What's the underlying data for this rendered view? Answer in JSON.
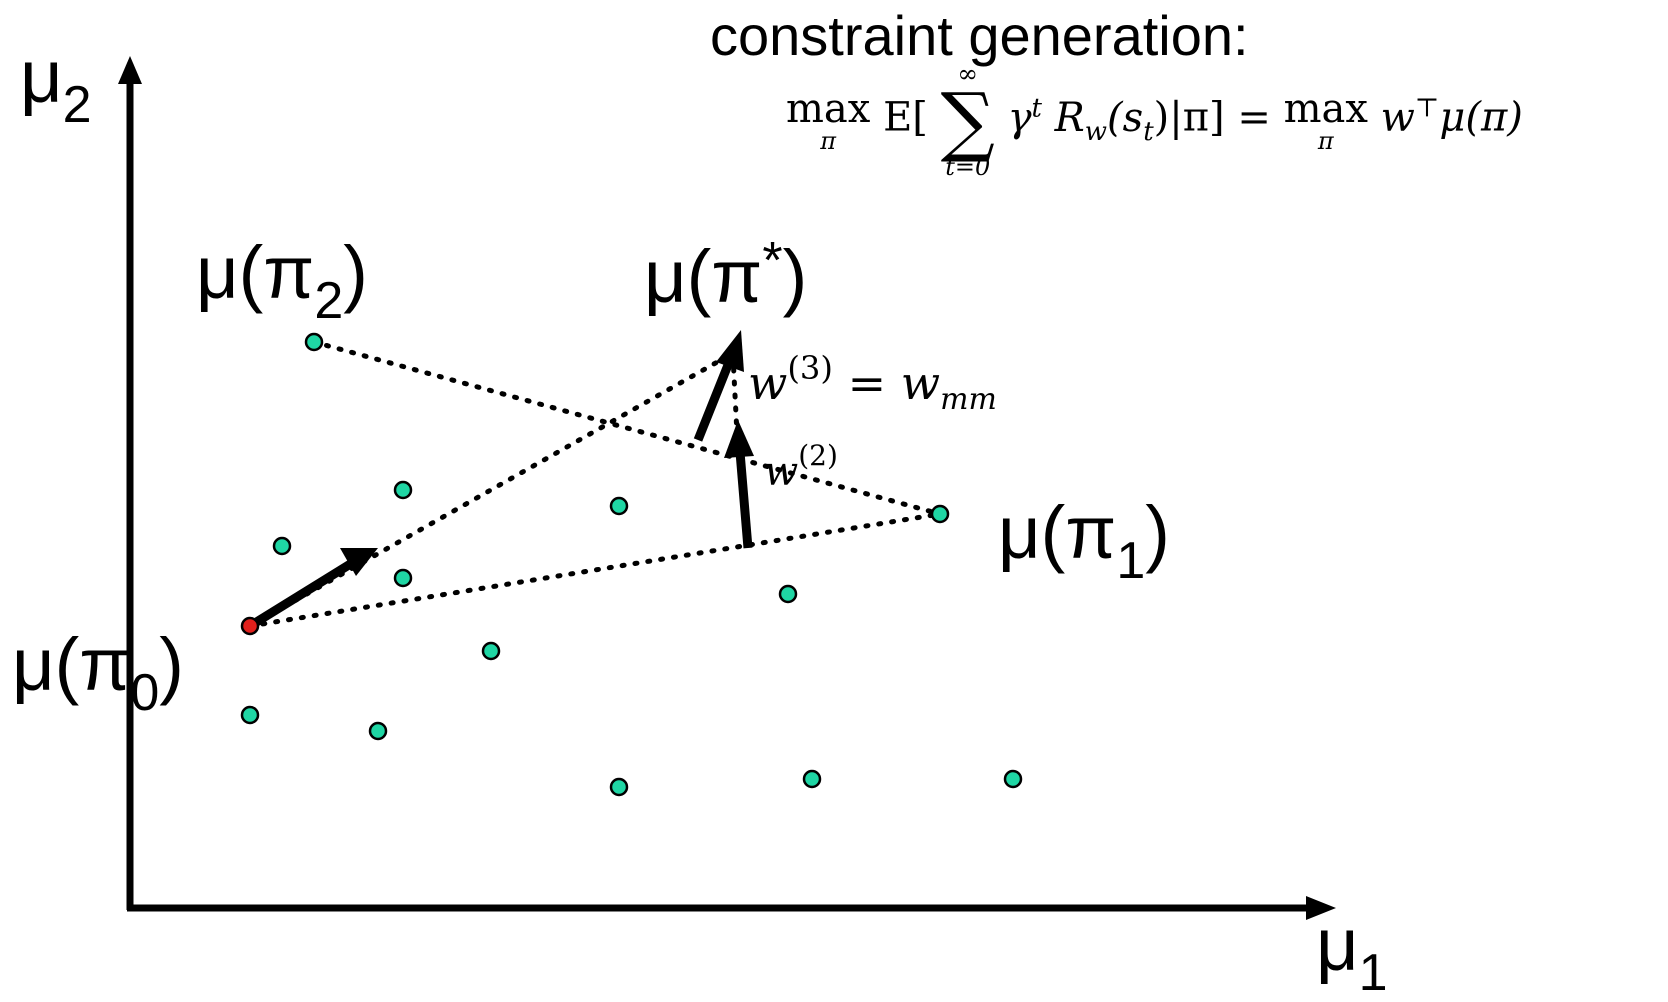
{
  "title": "constraint generation:",
  "formula": {
    "lhs_op": "max",
    "lhs_op_under": "π",
    "expect": "E[",
    "sum_over": "∞",
    "sum_symbol": "∑",
    "sum_under": "t=0",
    "body": "γ",
    "body_sup": "t",
    "reward": "R",
    "reward_sub": "w",
    "reward_arg": "(s",
    "reward_arg_sub": "t",
    "cond": ")|π] =",
    "rhs_op": "max",
    "rhs_op_under": "π",
    "rhs": "w",
    "rhs_sup": "⊤",
    "rhs_tail": "μ(π)"
  },
  "axes": {
    "x_label": "μ",
    "x_sub": "1",
    "y_label": "μ",
    "y_sub": "2"
  },
  "labels": {
    "pi0": {
      "main": "μ(π",
      "sub": "0",
      "close": ")"
    },
    "pi1": {
      "main": "μ(π",
      "sub": "1",
      "close": ")"
    },
    "pi2": {
      "main": "μ(π",
      "sub": "2",
      "close": ")"
    },
    "pistar": {
      "main": "μ(π",
      "sup": "*",
      "close": ")"
    },
    "w3": {
      "var": "w",
      "sup": "(3)",
      "rest": " = w",
      "rest_sub": "mm"
    },
    "w2": {
      "var": "w",
      "sup": "(2)"
    }
  },
  "colors": {
    "point_fill": "#1fd6a4",
    "start_fill": "#e0201c",
    "stroke": "#000000"
  }
}
